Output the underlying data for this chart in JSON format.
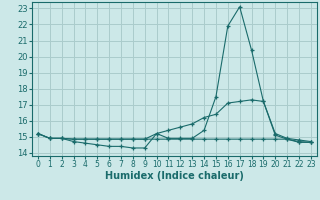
{
  "xlabel": "Humidex (Indice chaleur)",
  "bg_color": "#cce8e8",
  "grid_color": "#aacccc",
  "line_color": "#1a6b6b",
  "xlim": [
    -0.5,
    23.5
  ],
  "ylim": [
    13.8,
    23.4
  ],
  "xticks": [
    0,
    1,
    2,
    3,
    4,
    5,
    6,
    7,
    8,
    9,
    10,
    11,
    12,
    13,
    14,
    15,
    16,
    17,
    18,
    19,
    20,
    21,
    22,
    23
  ],
  "yticks": [
    14,
    15,
    16,
    17,
    18,
    19,
    20,
    21,
    22,
    23
  ],
  "series": [
    {
      "x": [
        0,
        1,
        2,
        3,
        4,
        5,
        6,
        7,
        8,
        9,
        10,
        11,
        12,
        13,
        14,
        15,
        16,
        17,
        18,
        19,
        20,
        21,
        22,
        23
      ],
      "y": [
        15.2,
        14.9,
        14.9,
        14.7,
        14.6,
        14.5,
        14.4,
        14.4,
        14.3,
        14.3,
        15.2,
        14.9,
        14.9,
        14.9,
        15.4,
        17.5,
        21.9,
        23.1,
        20.4,
        17.2,
        15.1,
        14.85,
        14.65,
        14.65
      ]
    },
    {
      "x": [
        0,
        1,
        2,
        3,
        4,
        5,
        6,
        7,
        8,
        9,
        10,
        11,
        12,
        13,
        14,
        15,
        16,
        17,
        18,
        19,
        20,
        21,
        22,
        23
      ],
      "y": [
        15.2,
        14.9,
        14.9,
        14.85,
        14.85,
        14.85,
        14.85,
        14.85,
        14.85,
        14.85,
        15.2,
        15.4,
        15.6,
        15.8,
        16.2,
        16.4,
        17.1,
        17.2,
        17.3,
        17.2,
        15.2,
        14.9,
        14.8,
        14.7
      ]
    },
    {
      "x": [
        0,
        1,
        2,
        3,
        4,
        5,
        6,
        7,
        8,
        9,
        10,
        11,
        12,
        13,
        14,
        15,
        16,
        17,
        18,
        19,
        20,
        21,
        22,
        23
      ],
      "y": [
        15.2,
        14.9,
        14.9,
        14.85,
        14.85,
        14.85,
        14.85,
        14.85,
        14.85,
        14.85,
        14.85,
        14.85,
        14.85,
        14.85,
        14.85,
        14.85,
        14.85,
        14.85,
        14.85,
        14.85,
        14.85,
        14.85,
        14.7,
        14.65
      ]
    }
  ],
  "xlabel_fontsize": 7,
  "ytick_fontsize": 6,
  "xtick_fontsize": 5.5
}
